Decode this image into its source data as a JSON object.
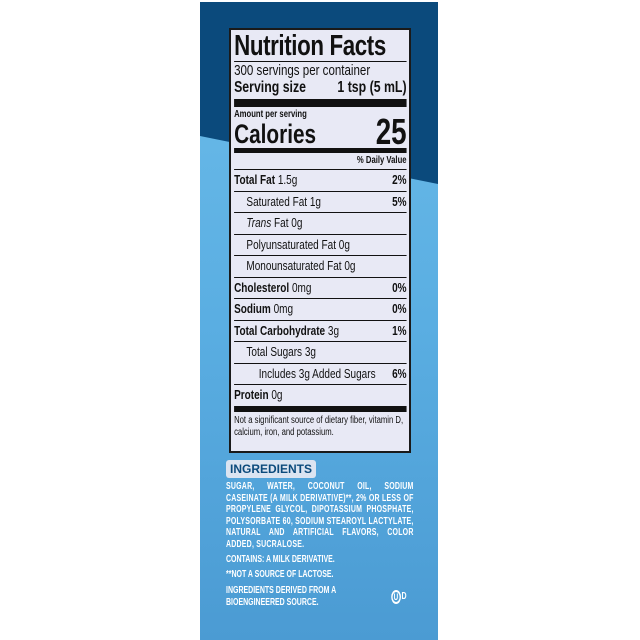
{
  "nutrition": {
    "title": "Nutrition Facts",
    "servings": "300 servings per container",
    "serving_size_label": "Serving size",
    "serving_size_value": "1 tsp (5 mL)",
    "amount_per_serving": "Amount per serving",
    "calories_label": "Calories",
    "calories_value": "25",
    "daily_value_header": "% Daily Value",
    "rows": [
      {
        "label": "Total Fat",
        "amount": "1.5g",
        "dv": "2%"
      },
      {
        "label": "Saturated Fat",
        "amount": "1g",
        "dv": "5%"
      },
      {
        "label": "Trans",
        "label2": "Fat",
        "amount": "0g",
        "dv": ""
      },
      {
        "label": "Polyunsaturated Fat",
        "amount": "0g",
        "dv": ""
      },
      {
        "label": "Monounsaturated Fat",
        "amount": "0g",
        "dv": ""
      },
      {
        "label": "Cholesterol",
        "amount": "0mg",
        "dv": "0%"
      },
      {
        "label": "Sodium",
        "amount": "0mg",
        "dv": "0%"
      },
      {
        "label": "Total Carbohydrate",
        "amount": "3g",
        "dv": "1%"
      },
      {
        "label": "Total Sugars",
        "amount": "3g",
        "dv": ""
      },
      {
        "label": "Includes 3g Added Sugars",
        "amount": "",
        "dv": "6%"
      },
      {
        "label": "Protein",
        "amount": "0g",
        "dv": ""
      }
    ],
    "footnote": "Not a significant source of dietary fiber, vitamin D, calcium, iron, and potassium."
  },
  "ingredients": {
    "heading": "INGREDIENTS",
    "text": "SUGAR, WATER, COCONUT OIL, SODIUM CASEINATE (A MILK DERIVATIVE)**, 2% OR LESS OF PROPYLENE GLYCOL, DIPOTASSIUM PHOSPHATE, POLYSORBATE 60, SODIUM STEAROYL LACTYLATE, NATURAL AND ARTIFICIAL FLAVORS, COLOR ADDED, SUCRALOSE.",
    "contains": "CONTAINS: A MILK DERIVATIVE.",
    "lactose_note": "**NOT A SOURCE OF LACTOSE.",
    "bioengineered": "INGREDIENTS DERIVED FROM A BIOENGINEERED SOURCE.",
    "kosher_symbol": "U",
    "kosher_suffix": "D"
  },
  "colors": {
    "dark_blue": "#0b4a7c",
    "light_blue": "#5aaee2",
    "label_bg": "#e8e9f5"
  }
}
